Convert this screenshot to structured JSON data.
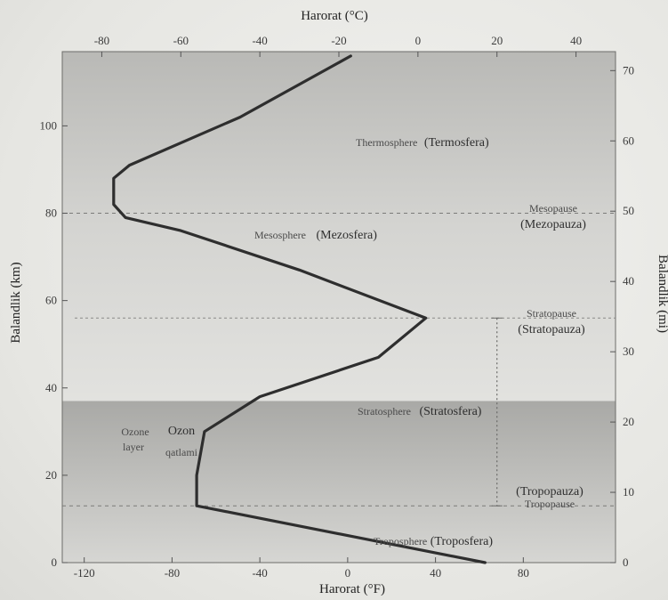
{
  "chart_data": {
    "type": "line",
    "top_axis": {
      "title": "Harorat (°C)",
      "unit": "°C",
      "range": [
        -90,
        50
      ],
      "ticks": [
        "-80",
        "-60",
        "-40",
        "-20",
        "0",
        "20",
        "40"
      ]
    },
    "bottom_axis": {
      "title": "Harorat (°F)",
      "unit": "°F",
      "range": [
        -130,
        122
      ],
      "ticks": [
        "-120",
        "-80",
        "-40",
        "0",
        "40",
        "80"
      ]
    },
    "left_axis": {
      "title": "Balandlik (km)",
      "unit": "km",
      "range": [
        0,
        117
      ],
      "ticks": [
        "0",
        "20",
        "40",
        "60",
        "80",
        "100"
      ]
    },
    "right_axis": {
      "title": "Balandlik (mi)",
      "unit": "mi",
      "range": [
        0,
        72.7
      ],
      "ticks": [
        "0",
        "10",
        "20",
        "30",
        "40",
        "50",
        "60",
        "70"
      ]
    },
    "series": [
      {
        "points": [
          {
            "t_c": 17,
            "alt_km": 0
          },
          {
            "t_c": -56,
            "alt_km": 13
          },
          {
            "t_c": -56,
            "alt_km": 20
          },
          {
            "t_c": -54,
            "alt_km": 30
          },
          {
            "t_c": -40,
            "alt_km": 38
          },
          {
            "t_c": -10,
            "alt_km": 47
          },
          {
            "t_c": 2,
            "alt_km": 56
          },
          {
            "t_c": -30,
            "alt_km": 67
          },
          {
            "t_c": -60,
            "alt_km": 76
          },
          {
            "t_c": -74,
            "alt_km": 79
          },
          {
            "t_c": -77,
            "alt_km": 82
          },
          {
            "t_c": -77,
            "alt_km": 88
          },
          {
            "t_c": -73,
            "alt_km": 91
          },
          {
            "t_c": -45,
            "alt_km": 102
          },
          {
            "t_c": -17,
            "alt_km": 116
          }
        ]
      }
    ],
    "boundaries": [
      {
        "name": "tropopause",
        "alt_km": 13,
        "label": "Tropopause",
        "label_local": "(Tropopauza)"
      },
      {
        "name": "stratopause",
        "alt_km": 56,
        "label": "Stratopause",
        "label_local": "(Stratopauza)"
      },
      {
        "name": "mesopause",
        "alt_km": 80,
        "label": "Mesopause",
        "label_local": "(Mezopauza)"
      }
    ],
    "layers": [
      {
        "name": "troposphere",
        "label": "Troposphere",
        "label_local": "(Troposfera)"
      },
      {
        "name": "stratosphere",
        "label": "Stratosphere",
        "label_local": "(Stratosfera)"
      },
      {
        "name": "mesosphere",
        "label": "Mesosphere",
        "label_local": "(Mezosfera)"
      },
      {
        "name": "thermosphere",
        "label": "Thermosphere",
        "label_local": "(Termosfera)"
      }
    ],
    "ozone_layer": {
      "label_en_line1": "Ozone",
      "label_en_line2": "layer",
      "label_local_line1": "Ozon",
      "label_local_line2": "qatlami",
      "alt_range_km": [
        0,
        37
      ]
    },
    "grid": false
  }
}
